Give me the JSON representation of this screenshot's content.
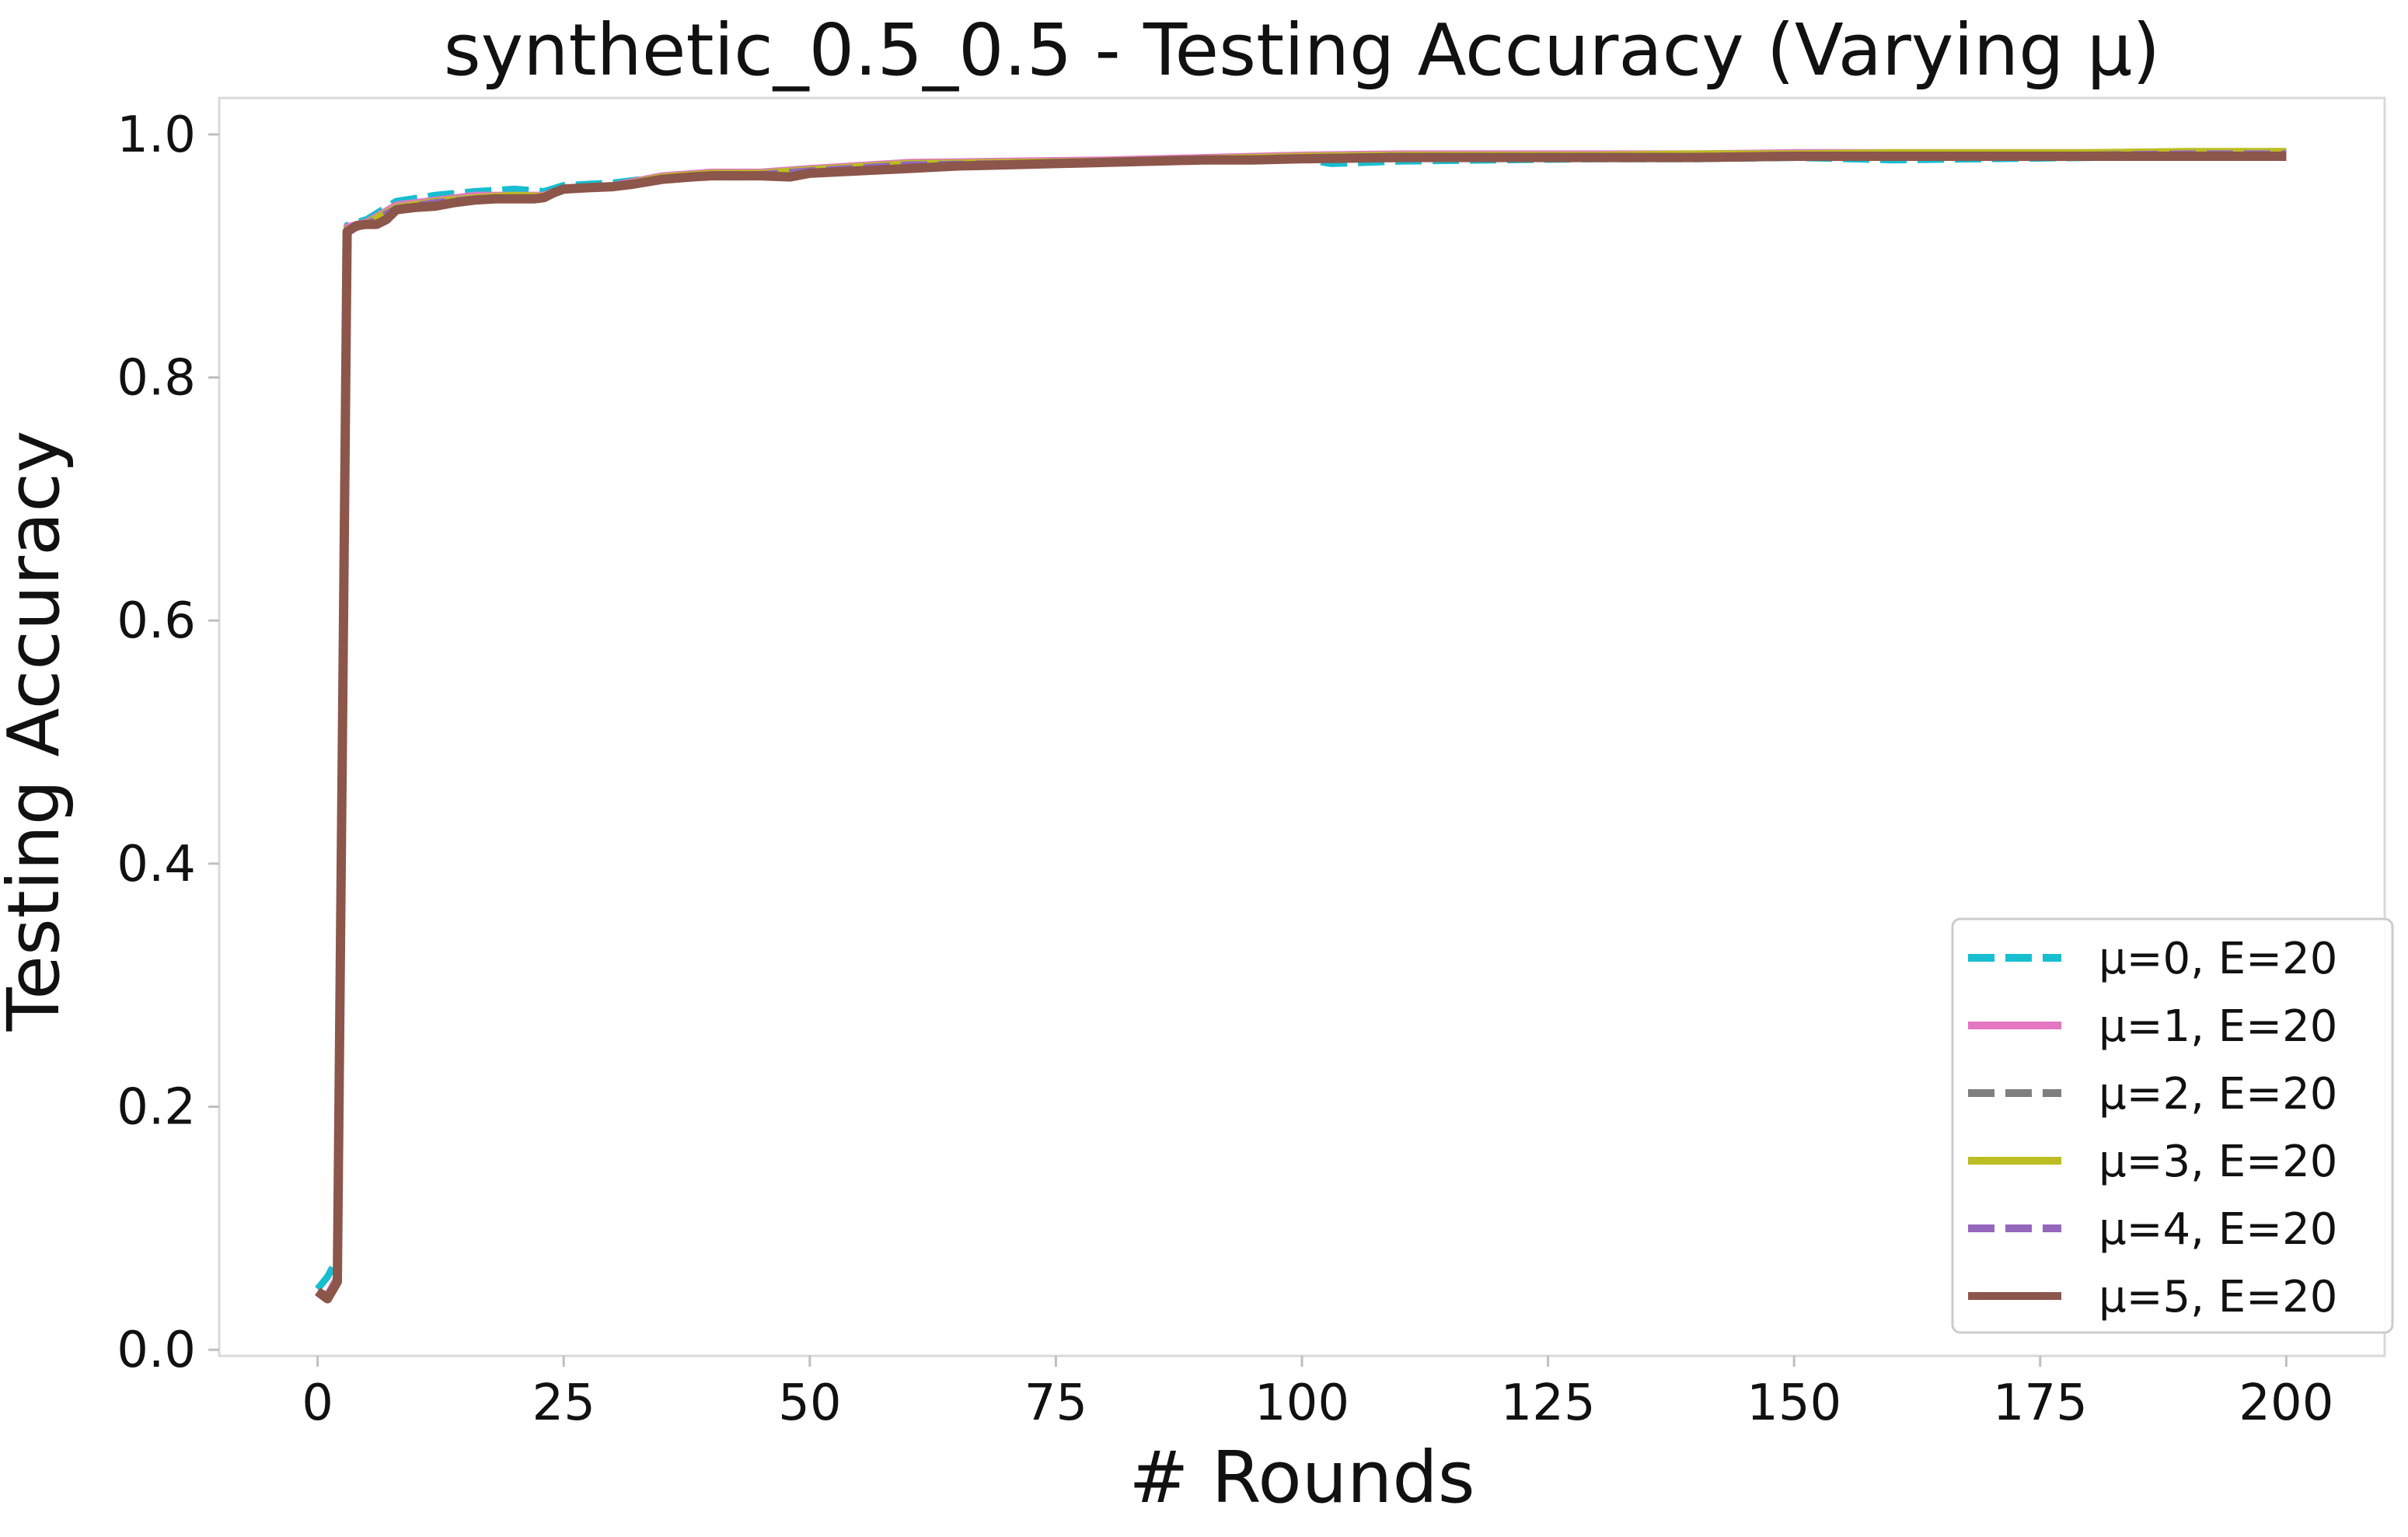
{
  "chart_data": {
    "type": "line",
    "title": "synthetic_0.5_0.5 - Testing Accuracy (Varying μ)",
    "xlabel": "# Rounds",
    "ylabel": "Testing Accuracy",
    "xlim": [
      -10,
      210
    ],
    "ylim": [
      -0.005,
      1.03
    ],
    "xticks": [
      0,
      25,
      50,
      75,
      100,
      125,
      150,
      175,
      200
    ],
    "yticks": [
      0.0,
      0.2,
      0.4,
      0.6,
      0.8,
      1.0
    ],
    "xtick_labels": [
      "0",
      "25",
      "50",
      "75",
      "100",
      "125",
      "150",
      "175",
      "200"
    ],
    "ytick_labels": [
      "0.0",
      "0.2",
      "0.4",
      "0.6",
      "0.8",
      "1.0"
    ],
    "grid": false,
    "legend_position": "lower-right",
    "series": [
      {
        "name": "μ=0, E=20",
        "color": "#17becf",
        "dash": "dashed",
        "x": [
          0,
          1,
          2,
          3,
          5,
          8,
          12,
          16,
          20,
          23,
          25,
          30,
          35,
          40,
          45,
          50,
          60,
          70,
          80,
          90,
          100,
          103,
          110,
          120,
          130,
          140,
          150,
          160,
          170,
          180,
          190,
          200
        ],
        "y": [
          0.05,
          0.06,
          0.075,
          0.925,
          0.93,
          0.945,
          0.95,
          0.953,
          0.955,
          0.953,
          0.958,
          0.96,
          0.965,
          0.968,
          0.967,
          0.97,
          0.975,
          0.977,
          0.978,
          0.98,
          0.98,
          0.976,
          0.978,
          0.979,
          0.98,
          0.98,
          0.981,
          0.979,
          0.98,
          0.981,
          0.982,
          0.982
        ]
      },
      {
        "name": "μ=1, E=20",
        "color": "#e377c2",
        "dash": "solid",
        "x": [
          0,
          1,
          2,
          3,
          5,
          8,
          12,
          16,
          20,
          23,
          25,
          30,
          35,
          40,
          45,
          50,
          60,
          70,
          80,
          90,
          100,
          110,
          120,
          130,
          140,
          150,
          160,
          170,
          180,
          190,
          200
        ],
        "y": [
          0.048,
          0.045,
          0.06,
          0.924,
          0.928,
          0.942,
          0.946,
          0.95,
          0.95,
          0.95,
          0.956,
          0.958,
          0.966,
          0.969,
          0.969,
          0.972,
          0.977,
          0.978,
          0.979,
          0.981,
          0.983,
          0.984,
          0.984,
          0.984,
          0.984,
          0.985,
          0.985,
          0.985,
          0.985,
          0.985,
          0.985
        ]
      },
      {
        "name": "μ=2, E=20",
        "color": "#7f7f7f",
        "dash": "dashed",
        "x": [
          0,
          1,
          2,
          3,
          5,
          8,
          12,
          16,
          20,
          23,
          25,
          30,
          35,
          40,
          45,
          50,
          60,
          70,
          80,
          90,
          100,
          110,
          120,
          130,
          140,
          150,
          160,
          170,
          180,
          190,
          200
        ],
        "y": [
          0.048,
          0.044,
          0.058,
          0.922,
          0.927,
          0.94,
          0.945,
          0.948,
          0.949,
          0.949,
          0.955,
          0.957,
          0.965,
          0.968,
          0.968,
          0.971,
          0.976,
          0.977,
          0.978,
          0.98,
          0.982,
          0.983,
          0.983,
          0.983,
          0.983,
          0.984,
          0.984,
          0.984,
          0.984,
          0.984,
          0.984
        ]
      },
      {
        "name": "μ=3, E=20",
        "color": "#bcbd22",
        "dash": "solid",
        "x": [
          0,
          1,
          2,
          3,
          5,
          8,
          12,
          16,
          20,
          23,
          25,
          30,
          35,
          40,
          45,
          50,
          60,
          70,
          80,
          90,
          100,
          110,
          120,
          130,
          140,
          150,
          160,
          170,
          180,
          190,
          200
        ],
        "y": [
          0.048,
          0.044,
          0.058,
          0.922,
          0.927,
          0.94,
          0.945,
          0.948,
          0.95,
          0.949,
          0.955,
          0.957,
          0.965,
          0.968,
          0.968,
          0.971,
          0.976,
          0.977,
          0.978,
          0.98,
          0.982,
          0.983,
          0.983,
          0.983,
          0.984,
          0.984,
          0.985,
          0.985,
          0.985,
          0.986,
          0.986
        ]
      },
      {
        "name": "μ=4, E=20",
        "color": "#9467bd",
        "dash": "dashed",
        "x": [
          0,
          1,
          2,
          3,
          5,
          8,
          12,
          16,
          20,
          23,
          25,
          30,
          35,
          40,
          45,
          50,
          60,
          70,
          80,
          90,
          100,
          110,
          120,
          130,
          140,
          150,
          160,
          170,
          180,
          190,
          200
        ],
        "y": [
          0.048,
          0.044,
          0.058,
          0.921,
          0.926,
          0.939,
          0.944,
          0.947,
          0.948,
          0.948,
          0.955,
          0.957,
          0.964,
          0.967,
          0.967,
          0.97,
          0.975,
          0.976,
          0.977,
          0.979,
          0.981,
          0.982,
          0.982,
          0.982,
          0.982,
          0.983,
          0.983,
          0.983,
          0.983,
          0.984,
          0.984
        ]
      },
      {
        "name": "μ=5, E=20",
        "color": "#8c564b",
        "dash": "solid",
        "x": [
          0,
          1,
          2,
          3,
          4,
          5,
          6,
          7,
          8,
          10,
          12,
          14,
          16,
          18,
          20,
          22,
          23,
          24,
          25,
          27,
          30,
          32,
          35,
          38,
          40,
          45,
          48,
          50,
          55,
          60,
          65,
          70,
          75,
          80,
          85,
          90,
          95,
          100,
          110,
          120,
          130,
          140,
          150,
          160,
          170,
          180,
          190,
          200
        ],
        "y": [
          0.048,
          0.042,
          0.056,
          0.92,
          0.925,
          0.926,
          0.926,
          0.93,
          0.938,
          0.94,
          0.941,
          0.944,
          0.946,
          0.947,
          0.947,
          0.947,
          0.948,
          0.952,
          0.955,
          0.956,
          0.957,
          0.959,
          0.963,
          0.965,
          0.966,
          0.966,
          0.965,
          0.968,
          0.97,
          0.972,
          0.974,
          0.975,
          0.976,
          0.977,
          0.978,
          0.979,
          0.979,
          0.98,
          0.981,
          0.981,
          0.981,
          0.981,
          0.982,
          0.982,
          0.982,
          0.982,
          0.982,
          0.982
        ]
      }
    ]
  }
}
